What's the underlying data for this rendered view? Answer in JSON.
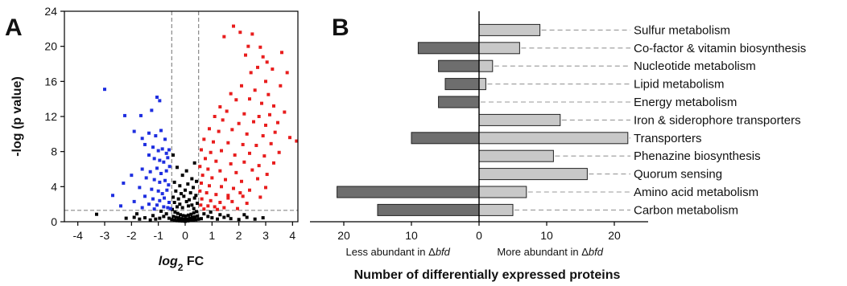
{
  "panels": {
    "a_label": "A",
    "b_label": "B"
  },
  "chart_data": [
    {
      "type": "scatter",
      "panel": "A",
      "title": "",
      "xlabel_prefix": "log",
      "xlabel_sub": "2",
      "xlabel_suffix": " FC",
      "ylabel": "-log (p value)",
      "xlim": [
        -4.5,
        4.2
      ],
      "ylim": [
        0,
        24
      ],
      "xticks": [
        -4,
        -3,
        -2,
        -1,
        0,
        1,
        2,
        3,
        4
      ],
      "yticks": [
        0,
        4,
        8,
        12,
        16,
        20,
        24
      ],
      "thresholds": {
        "fc": [
          -0.5,
          0.5
        ],
        "neg_log_p": 1.3
      },
      "colors": {
        "down": "#1f2fe0",
        "up": "#e81d1d",
        "ns": "#000000",
        "threshold_line": "#888888"
      },
      "series": [
        {
          "category": "down",
          "points": [
            [
              -3.0,
              15.1
            ],
            [
              -2.25,
              12.1
            ],
            [
              -1.65,
              12.1
            ],
            [
              -1.25,
              12.7
            ],
            [
              -1.05,
              14.2
            ],
            [
              -0.95,
              13.8
            ],
            [
              -1.9,
              10.3
            ],
            [
              -1.6,
              9.5
            ],
            [
              -1.35,
              10.1
            ],
            [
              -1.1,
              9.8
            ],
            [
              -0.9,
              10.4
            ],
            [
              -0.75,
              9.4
            ],
            [
              -1.5,
              8.8
            ],
            [
              -1.2,
              8.5
            ],
            [
              -1.0,
              8.1
            ],
            [
              -0.85,
              8.3
            ],
            [
              -0.7,
              7.8
            ],
            [
              -0.6,
              8.2
            ],
            [
              -1.35,
              7.6
            ],
            [
              -1.15,
              7.2
            ],
            [
              -0.95,
              7.0
            ],
            [
              -0.8,
              6.8
            ],
            [
              -0.65,
              7.3
            ],
            [
              -1.6,
              6.0
            ],
            [
              -1.3,
              5.7
            ],
            [
              -1.05,
              6.1
            ],
            [
              -0.9,
              5.5
            ],
            [
              -0.7,
              5.8
            ],
            [
              -0.58,
              6.3
            ],
            [
              -2.0,
              5.3
            ],
            [
              -1.45,
              5.0
            ],
            [
              -1.15,
              4.8
            ],
            [
              -0.95,
              4.5
            ],
            [
              -0.75,
              4.7
            ],
            [
              -0.62,
              4.2
            ],
            [
              -2.3,
              4.4
            ],
            [
              -1.7,
              3.9
            ],
            [
              -1.25,
              3.7
            ],
            [
              -1.0,
              3.5
            ],
            [
              -0.85,
              3.2
            ],
            [
              -0.68,
              3.6
            ],
            [
              -2.7,
              3.0
            ],
            [
              -1.5,
              2.9
            ],
            [
              -1.2,
              2.6
            ],
            [
              -0.95,
              2.4
            ],
            [
              -0.78,
              2.7
            ],
            [
              -0.6,
              2.2
            ],
            [
              -1.9,
              2.3
            ],
            [
              -1.35,
              2.0
            ],
            [
              -1.05,
              1.9
            ],
            [
              -0.8,
              1.7
            ],
            [
              -0.65,
              1.6
            ],
            [
              -0.55,
              1.5
            ],
            [
              -2.4,
              1.8
            ],
            [
              -1.6,
              1.6
            ],
            [
              -1.15,
              1.45
            ]
          ]
        },
        {
          "category": "up",
          "points": [
            [
              1.8,
              22.3
            ],
            [
              2.05,
              21.6
            ],
            [
              1.45,
              21.1
            ],
            [
              2.5,
              21.4
            ],
            [
              2.35,
              20.0
            ],
            [
              2.8,
              19.9
            ],
            [
              2.25,
              19.0
            ],
            [
              3.6,
              19.3
            ],
            [
              2.9,
              18.8
            ],
            [
              3.05,
              18.2
            ],
            [
              2.7,
              17.6
            ],
            [
              3.25,
              17.4
            ],
            [
              3.8,
              17.0
            ],
            [
              2.45,
              17.0
            ],
            [
              3.0,
              16.0
            ],
            [
              3.55,
              15.5
            ],
            [
              2.1,
              15.5
            ],
            [
              2.6,
              15.0
            ],
            [
              3.1,
              14.5
            ],
            [
              1.7,
              14.6
            ],
            [
              1.9,
              13.9
            ],
            [
              2.4,
              14.0
            ],
            [
              2.85,
              13.5
            ],
            [
              3.3,
              13.2
            ],
            [
              1.3,
              13.1
            ],
            [
              1.55,
              12.6
            ],
            [
              2.2,
              12.3
            ],
            [
              2.75,
              12.0
            ],
            [
              3.15,
              12.2
            ],
            [
              3.7,
              12.5
            ],
            [
              1.1,
              12.0
            ],
            [
              1.4,
              11.6
            ],
            [
              2.0,
              11.2
            ],
            [
              2.55,
              11.4
            ],
            [
              3.0,
              11.0
            ],
            [
              3.45,
              11.3
            ],
            [
              0.9,
              10.6
            ],
            [
              1.25,
              10.3
            ],
            [
              1.75,
              10.5
            ],
            [
              2.3,
              10.0
            ],
            [
              2.9,
              9.8
            ],
            [
              3.35,
              10.2
            ],
            [
              4.15,
              9.2
            ],
            [
              3.9,
              9.6
            ],
            [
              0.7,
              9.4
            ],
            [
              1.05,
              9.1
            ],
            [
              1.6,
              9.0
            ],
            [
              2.15,
              8.8
            ],
            [
              2.65,
              8.7
            ],
            [
              3.2,
              8.9
            ],
            [
              0.6,
              8.2
            ],
            [
              0.95,
              7.9
            ],
            [
              1.35,
              8.1
            ],
            [
              1.85,
              7.6
            ],
            [
              2.4,
              7.8
            ],
            [
              2.95,
              7.5
            ],
            [
              3.5,
              7.9
            ],
            [
              0.75,
              7.2
            ],
            [
              1.15,
              6.9
            ],
            [
              1.7,
              6.6
            ],
            [
              2.2,
              6.8
            ],
            [
              2.75,
              6.4
            ],
            [
              3.3,
              6.7
            ],
            [
              0.55,
              6.3
            ],
            [
              0.85,
              6.0
            ],
            [
              1.3,
              5.8
            ],
            [
              1.9,
              5.6
            ],
            [
              2.5,
              5.9
            ],
            [
              3.05,
              5.4
            ],
            [
              0.65,
              5.3
            ],
            [
              1.0,
              5.0
            ],
            [
              1.5,
              4.8
            ],
            [
              2.1,
              4.6
            ],
            [
              2.7,
              4.9
            ],
            [
              0.6,
              4.4
            ],
            [
              0.9,
              4.1
            ],
            [
              1.35,
              4.0
            ],
            [
              1.8,
              3.8
            ],
            [
              2.4,
              3.6
            ],
            [
              3.0,
              3.9
            ],
            [
              0.55,
              3.5
            ],
            [
              0.8,
              3.3
            ],
            [
              1.15,
              3.1
            ],
            [
              1.6,
              3.0
            ],
            [
              2.15,
              2.9
            ],
            [
              2.8,
              2.8
            ],
            [
              0.62,
              2.6
            ],
            [
              0.95,
              2.4
            ],
            [
              1.3,
              2.2
            ],
            [
              1.75,
              2.3
            ],
            [
              2.3,
              2.1
            ],
            [
              0.58,
              1.9
            ],
            [
              0.85,
              1.8
            ],
            [
              1.1,
              1.7
            ],
            [
              1.45,
              1.6
            ],
            [
              1.95,
              1.5
            ],
            [
              0.7,
              1.45
            ],
            [
              1.2,
              1.4
            ],
            [
              1.6,
              2.7
            ],
            [
              2.05,
              3.3
            ]
          ]
        },
        {
          "category": "ns",
          "points": [
            [
              -0.45,
              7.6
            ],
            [
              -0.3,
              6.2
            ],
            [
              -0.1,
              5.3
            ],
            [
              0.05,
              5.8
            ],
            [
              0.25,
              4.9
            ],
            [
              0.35,
              6.7
            ],
            [
              -0.4,
              4.5
            ],
            [
              -0.2,
              4.1
            ],
            [
              0.1,
              4.3
            ],
            [
              0.3,
              3.9
            ],
            [
              0.42,
              4.6
            ],
            [
              -0.35,
              3.5
            ],
            [
              -0.15,
              3.2
            ],
            [
              0.0,
              3.6
            ],
            [
              0.2,
              3.3
            ],
            [
              0.4,
              3.0
            ],
            [
              -0.45,
              2.8
            ],
            [
              -0.25,
              2.6
            ],
            [
              -0.05,
              2.9
            ],
            [
              0.15,
              2.5
            ],
            [
              0.35,
              2.7
            ],
            [
              -0.4,
              2.2
            ],
            [
              -0.2,
              2.0
            ],
            [
              0.05,
              2.3
            ],
            [
              0.25,
              1.9
            ],
            [
              0.45,
              2.1
            ],
            [
              -0.3,
              1.7
            ],
            [
              -0.1,
              1.6
            ],
            [
              0.12,
              1.8
            ],
            [
              0.32,
              1.5
            ],
            [
              -0.48,
              1.4
            ],
            [
              -0.38,
              1.1
            ],
            [
              -0.28,
              0.95
            ],
            [
              -0.18,
              0.8
            ],
            [
              -0.08,
              0.7
            ],
            [
              0.02,
              0.65
            ],
            [
              0.12,
              0.75
            ],
            [
              0.22,
              0.85
            ],
            [
              0.32,
              1.0
            ],
            [
              0.42,
              1.15
            ],
            [
              -0.44,
              0.6
            ],
            [
              -0.34,
              0.5
            ],
            [
              -0.24,
              0.45
            ],
            [
              -0.14,
              0.35
            ],
            [
              -0.04,
              0.3
            ],
            [
              0.06,
              0.28
            ],
            [
              0.16,
              0.4
            ],
            [
              0.26,
              0.5
            ],
            [
              0.36,
              0.55
            ],
            [
              0.46,
              0.65
            ],
            [
              -0.5,
              0.25
            ],
            [
              -0.4,
              0.18
            ],
            [
              -0.3,
              0.12
            ],
            [
              -0.2,
              0.1
            ],
            [
              -0.1,
              0.08
            ],
            [
              0.0,
              0.05
            ],
            [
              0.1,
              0.1
            ],
            [
              0.2,
              0.14
            ],
            [
              0.3,
              0.2
            ],
            [
              0.4,
              0.24
            ],
            [
              0.5,
              0.3
            ],
            [
              -0.7,
              0.9
            ],
            [
              -0.8,
              0.6
            ],
            [
              -0.95,
              0.4
            ],
            [
              -1.1,
              0.3
            ],
            [
              -1.3,
              0.2
            ],
            [
              -1.5,
              0.45
            ],
            [
              -1.7,
              0.3
            ],
            [
              -1.9,
              0.5
            ],
            [
              -2.2,
              0.4
            ],
            [
              -3.3,
              0.85
            ],
            [
              0.7,
              0.9
            ],
            [
              0.85,
              0.6
            ],
            [
              1.0,
              0.45
            ],
            [
              1.2,
              0.3
            ],
            [
              1.45,
              0.5
            ],
            [
              1.7,
              0.35
            ],
            [
              2.0,
              0.25
            ],
            [
              2.3,
              0.5
            ],
            [
              2.6,
              0.3
            ],
            [
              2.9,
              0.45
            ],
            [
              0.6,
              0.35
            ],
            [
              -0.6,
              0.4
            ],
            [
              0.95,
              1.1
            ],
            [
              -0.9,
              1.2
            ],
            [
              1.3,
              0.8
            ],
            [
              -1.2,
              0.7
            ],
            [
              1.6,
              0.7
            ],
            [
              -1.8,
              0.9
            ],
            [
              2.2,
              0.8
            ]
          ]
        }
      ]
    },
    {
      "type": "bar",
      "orientation": "horizontal",
      "panel": "B",
      "title": "",
      "xlabel": "Number of differentially expressed proteins",
      "xlim": [
        -25,
        25
      ],
      "xticks": [
        {
          "value": -20,
          "label": "20"
        },
        {
          "value": -10,
          "label": "10"
        },
        {
          "value": 0,
          "label": "0"
        },
        {
          "value": 10,
          "label": "10"
        },
        {
          "value": 20,
          "label": "20"
        }
      ],
      "left_note_prefix": "Less abundant in Δ",
      "left_note_italic": "bfd",
      "right_note_prefix": "More abundant in Δ",
      "right_note_italic": "bfd",
      "categories": [
        "Sulfur metabolism",
        "Co-factor & vitamin biosynthesis",
        "Nucleotide metabolism",
        "Lipid metabolism",
        "Energy metabolism",
        "Iron & siderophore transporters",
        "Transporters",
        "Phenazine biosynthesis",
        "Quorum sensing",
        "Amino acid metabolism",
        "Carbon metabolism"
      ],
      "series": [
        {
          "values": [
            0,
            9,
            6,
            5,
            6,
            0,
            10,
            0,
            0,
            21,
            15
          ],
          "color": "#6e6e6e",
          "direction": "less"
        },
        {
          "values": [
            9,
            6,
            2,
            1,
            0,
            12,
            22,
            11,
            16,
            7,
            5
          ],
          "color": "#c8c8c8",
          "direction": "more"
        }
      ]
    }
  ]
}
